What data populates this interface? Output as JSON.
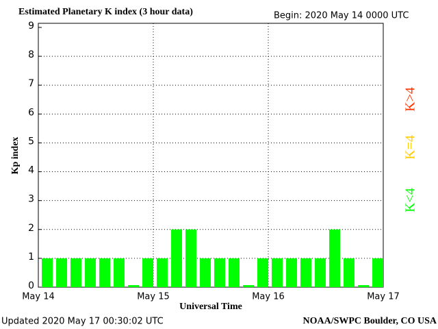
{
  "chart_data": {
    "type": "bar",
    "title": "Estimated Planetary K index (3 hour data)",
    "begin": "Begin:  2020 May 14 0000 UTC",
    "y_label": "Kp index",
    "x_label": "Universal Time",
    "updated": "Updated 2020 May 17 00:30:02 UTC",
    "source": "NOAA/SWPC Boulder, CO USA",
    "values": [
      1,
      1,
      1,
      1,
      1,
      1,
      0,
      1,
      1,
      2,
      2,
      1,
      1,
      1,
      0,
      1,
      1,
      1,
      1,
      1,
      2,
      1,
      0,
      1
    ],
    "color": "#00ff00",
    "xlabels": [
      "May 14",
      "May 15",
      "May 16",
      "May 17"
    ],
    "ylim": [
      0,
      9
    ],
    "yticks": [
      0,
      1,
      2,
      3,
      4,
      5,
      6,
      7,
      8,
      9
    ],
    "grid": true,
    "legend": [
      {
        "label": "K<4",
        "color": "#00ff00"
      },
      {
        "label": "K=4",
        "color": "#ffcc00"
      },
      {
        "label": "K>4",
        "color": "#ff3300"
      }
    ]
  }
}
